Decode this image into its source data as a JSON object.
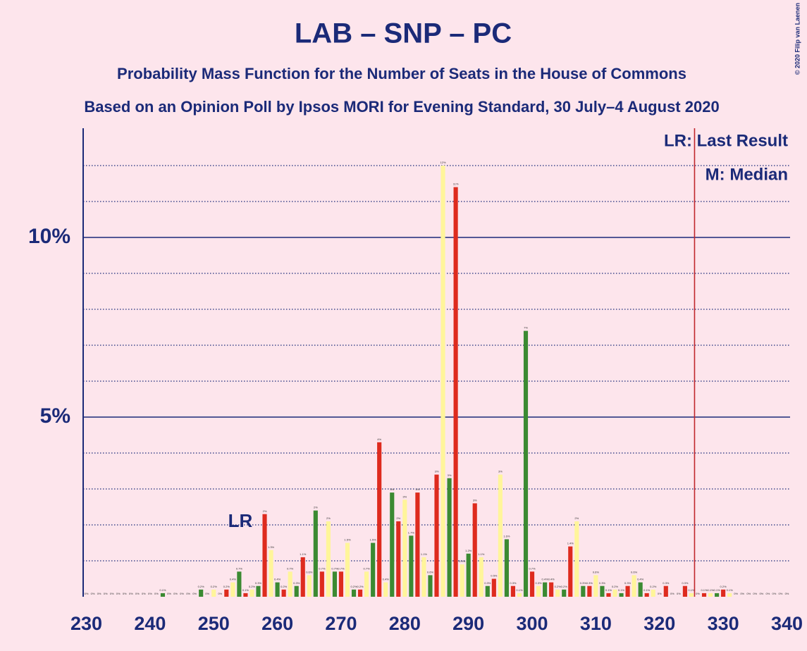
{
  "chart_data": {
    "type": "bar",
    "title": "LAB – SNP – PC",
    "subtitle": "Probability Mass Function for the Number of Seats in the House of Commons",
    "subtitle2": "Based on an Opinion Poll by Ipsos MORI for Evening Standard, 30 July–4 August 2020",
    "legend_lines": [
      "LR: Last Result",
      "M: Median"
    ],
    "lr_label": "LR",
    "copyright": "© 2020 Filip van Laenen",
    "colors": [
      "#3b8a32",
      "#de2b1e",
      "#fff59a"
    ],
    "x": [
      230,
      231,
      232,
      233,
      234,
      235,
      236,
      237,
      238,
      239,
      240,
      241,
      242,
      243,
      244,
      245,
      246,
      247,
      248,
      249,
      250,
      251,
      252,
      253,
      254,
      255,
      256,
      257,
      258,
      259,
      260,
      261,
      262,
      263,
      264,
      265,
      266,
      267,
      268,
      269,
      270,
      271,
      272,
      273,
      274,
      275,
      276,
      277,
      278,
      279,
      280,
      281,
      282,
      283,
      284,
      285,
      286,
      287,
      288,
      289,
      290,
      291,
      292,
      293,
      294,
      295,
      296,
      297,
      298,
      299,
      300,
      301,
      302,
      303,
      304,
      305,
      306,
      307,
      308,
      309,
      310,
      311,
      312,
      313,
      314,
      315,
      316,
      317,
      318,
      319,
      320,
      321,
      322,
      323,
      324,
      325,
      326,
      327,
      328,
      329,
      330,
      331,
      332,
      333,
      334,
      335,
      336,
      337,
      338,
      339,
      340
    ],
    "values": [
      0,
      0,
      0,
      0,
      0,
      0,
      0,
      0,
      0,
      0,
      0,
      0,
      0.1,
      0,
      0,
      0,
      0,
      0,
      0.2,
      0,
      0.2,
      0,
      0.2,
      0.4,
      0.7,
      0.1,
      0.2,
      0.3,
      2.3,
      1.3,
      0.4,
      0.2,
      0.7,
      0.3,
      1.1,
      0.6,
      2.4,
      0.7,
      2.1,
      0.7,
      0.7,
      1.5,
      0.2,
      0.2,
      0.7,
      1.5,
      4.3,
      0.4,
      2.9,
      2.1,
      2.7,
      1.7,
      2.9,
      1.1,
      0.6,
      3.4,
      12,
      3.3,
      11.4,
      0.9,
      1.2,
      2.6,
      1.1,
      0.3,
      0.5,
      3.4,
      1.6,
      0.3,
      0.1,
      7.4,
      0.7,
      0.3,
      0.4,
      0.4,
      0.2,
      0.2,
      1.4,
      2.1,
      0.3,
      0.3,
      0.6,
      0.3,
      0.1,
      0.2,
      0.1,
      0.3,
      0.6,
      0.4,
      0.1,
      0.2,
      0,
      0.3,
      0,
      0,
      0.3,
      0.1,
      0,
      0.1,
      0.1,
      0.1,
      0.2,
      0.1,
      0,
      0,
      0,
      0,
      0,
      0,
      0,
      0,
      0
    ],
    "value_labels": [
      "0%",
      "0%",
      "0%",
      "0%",
      "0%",
      "0%",
      "0%",
      "0%",
      "0%",
      "0%",
      "0%",
      "0%",
      "0.1%",
      "0%",
      "0%",
      "0%",
      "0%",
      "0%",
      "0.2%",
      "0%",
      "0.2%",
      "0%",
      "0.2%",
      "0.4%",
      "0.7%",
      "0.1%",
      "0.2%",
      "0.3%",
      "2%",
      "1.3%",
      "0.4%",
      "0.2%",
      "0.7%",
      "0.3%",
      "1.1%",
      "0.6%",
      "2%",
      "0.7%",
      "2%",
      "0.7%",
      "0.7%",
      "1.5%",
      "0.2%",
      "0.2%",
      "0.7%",
      "1.5%",
      "4%",
      "0.4%",
      "3%",
      "2%",
      "3%",
      "1.7%",
      "3%",
      "1.1%",
      "0.6%",
      "3%",
      "12%",
      "3%",
      "11%",
      "0.9%",
      "1.2%",
      "3%",
      "1.1%",
      "0.3%",
      "0.5%",
      "3%",
      "1.6%",
      "0.3%",
      "0.1%",
      "7%",
      "0.7%",
      "0.3%",
      "0.4%",
      "0.4%",
      "0.2%",
      "0.2%",
      "1.4%",
      "2%",
      "0.3%",
      "0.3%",
      "0.6%",
      "0.3%",
      "0.1%",
      "0.2%",
      "0.1%",
      "0.3%",
      "0.6%",
      "0.4%",
      "0.1%",
      "0.2%",
      "0%",
      "0.3%",
      "0%",
      "0%",
      "0.3%",
      "0.1%",
      "0%",
      "0.1%",
      "0.1%",
      "0.1%",
      "0.2%",
      "0.1%",
      "0%",
      "0%",
      "0%",
      "0%",
      "0%",
      "0%",
      "0%",
      "0%",
      "0%"
    ],
    "xlim": [
      229.5,
      340.5
    ],
    "xticks": [
      230,
      240,
      250,
      260,
      270,
      280,
      290,
      300,
      310,
      320,
      330,
      340
    ],
    "ylim": [
      0,
      13
    ],
    "yticks": [
      {
        "value": 5,
        "label": "5%"
      },
      {
        "value": 10,
        "label": "10%"
      }
    ],
    "minor_yticks": [
      1,
      2,
      3,
      4,
      6,
      7,
      8,
      9,
      11,
      12
    ],
    "vline_x": 325.5,
    "vline_color": "#c0262d"
  }
}
